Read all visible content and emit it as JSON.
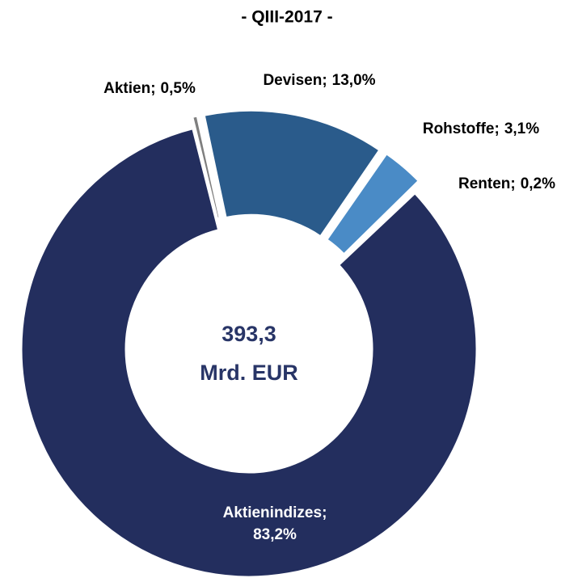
{
  "chart_data": {
    "type": "donut",
    "title": "- QIII-2017 -",
    "center_label": [
      "393,3",
      "Mrd. EUR"
    ],
    "categories": [
      "Aktien;",
      "Devisen;",
      "Rohstoffe;",
      "Renten;",
      "Aktienindizes;"
    ],
    "values": [
      0.5,
      13.0,
      3.1,
      0.2,
      83.2
    ],
    "value_labels": [
      "0,5%",
      "13,0%",
      "3,1%",
      "0,2%",
      "83,2%"
    ],
    "colors": [
      "#7f7f7f",
      "#2a5b8b",
      "#4a8bc6",
      "#9a9a9a",
      "#232e5e"
    ]
  }
}
